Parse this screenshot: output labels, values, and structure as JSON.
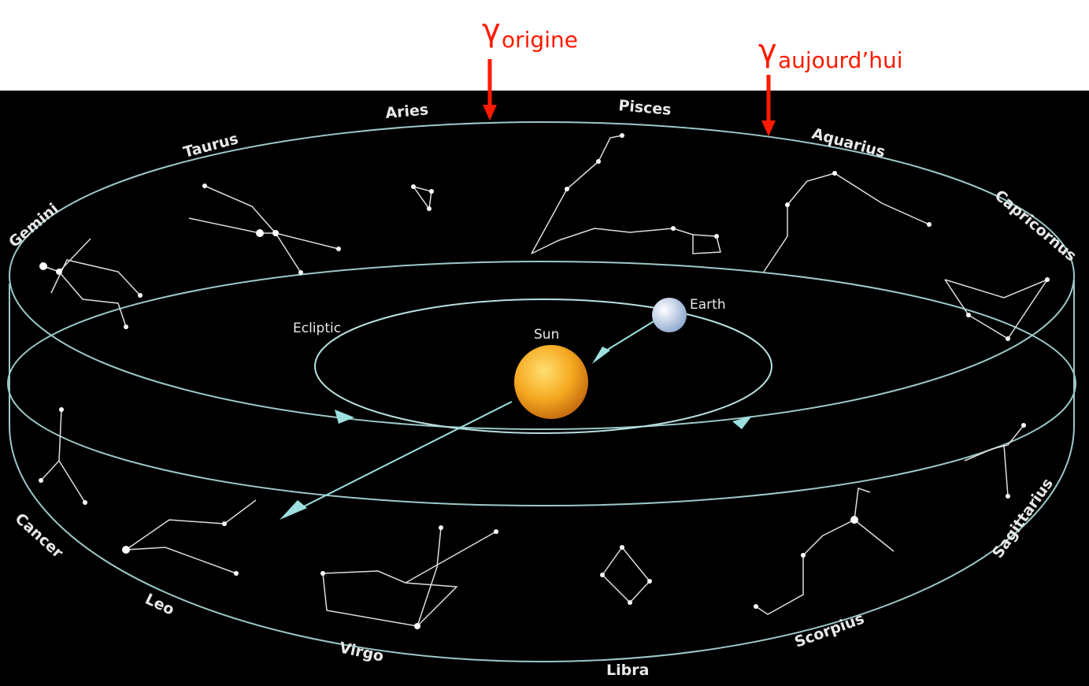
{
  "annotations": [
    {
      "symbol": "γ",
      "subscript": "origine"
    },
    {
      "symbol": "γ",
      "subscript": "aujourd’hui"
    }
  ],
  "constellations": [
    "Aries",
    "Pisces",
    "Aquarius",
    "Capricornus",
    "Sagittarius",
    "Scorpius",
    "Libra",
    "Virgo",
    "Leo",
    "Cancer",
    "Gemini",
    "Taurus"
  ],
  "labels": {
    "earth": "Earth",
    "sun": "Sun",
    "ecliptic": "Ecliptic"
  }
}
